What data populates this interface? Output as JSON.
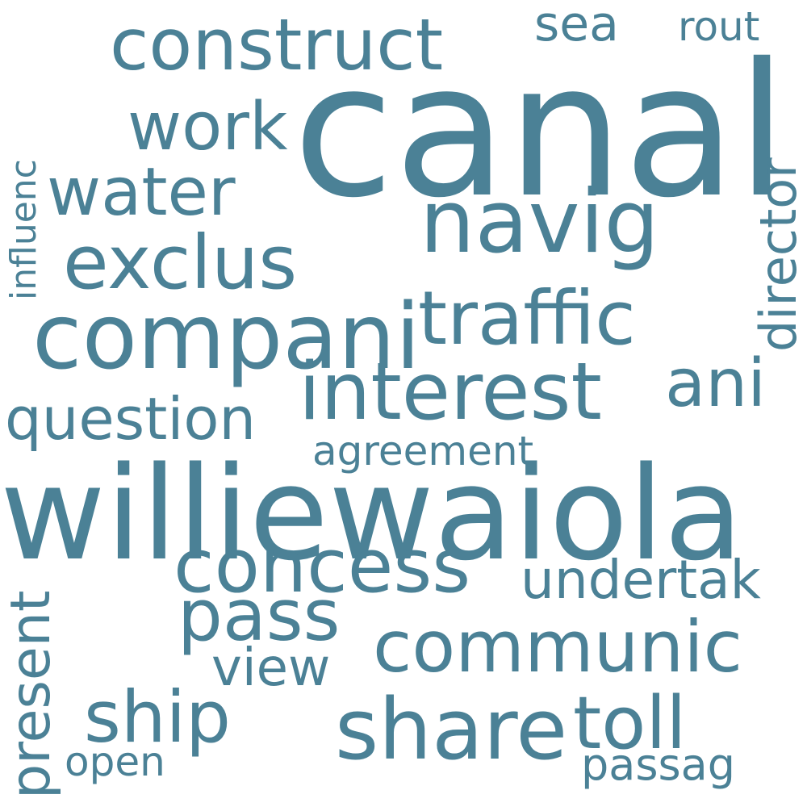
{
  "colors": {
    "background": "#ffffff",
    "word": "#4b8196"
  },
  "words": {
    "canal": "canal",
    "williewaiola": "williewaiola",
    "compani": "compani",
    "construct": "construct",
    "navig": "navig",
    "interest": "interest",
    "share": "share",
    "traffic": "traffic",
    "exclus": "exclus",
    "concess": "concess",
    "communic": "communic",
    "water": "water",
    "work": "work",
    "pass": "pass",
    "ship": "ship",
    "toll": "toll",
    "question": "question",
    "undertak": "undertak",
    "ani": "ani",
    "director": "director",
    "present": "present",
    "view": "view",
    "influenc": "influenc",
    "sea": "sea",
    "rout": "rout",
    "agreement": "agreement",
    "open": "open",
    "passag": "passag"
  }
}
